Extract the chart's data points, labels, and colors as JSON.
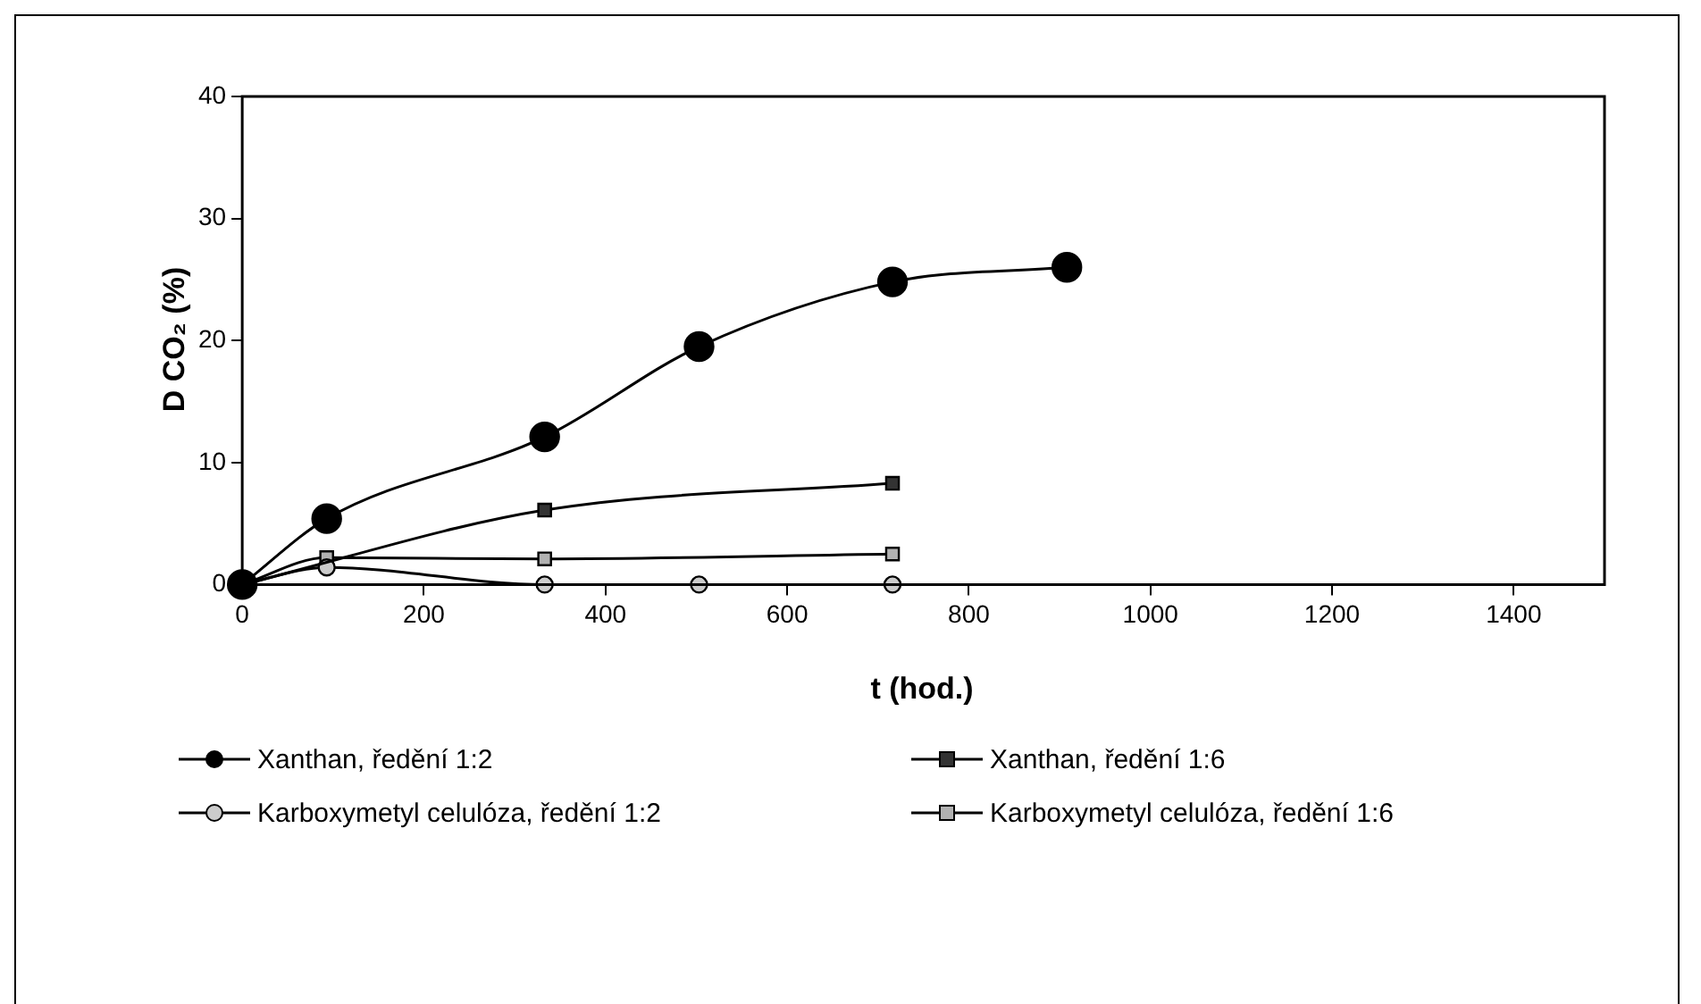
{
  "chart_data": {
    "type": "line",
    "xlabel": "t (hod.)",
    "ylabel": "D CO₂ (%)",
    "xlim": [
      0,
      1500
    ],
    "xticks": [
      0,
      200,
      400,
      600,
      800,
      1000,
      1200,
      1400
    ],
    "ylim": [
      0,
      40
    ],
    "yticks": [
      0,
      10,
      20,
      30,
      40
    ],
    "grid": false,
    "legend": "bottom",
    "series": [
      {
        "name": "Xanthan, ředění 1:2",
        "color": "#000000",
        "marker": "circle",
        "x": [
          0,
          93,
          333,
          503,
          716,
          908
        ],
        "values": [
          0,
          5.4,
          12.1,
          19.5,
          24.8,
          26.0
        ]
      },
      {
        "name": "Xanthan, ředění 1:6",
        "color": "#333333",
        "marker": "square",
        "x": [
          0,
          93,
          333,
          716
        ],
        "values": [
          0,
          null,
          6.1,
          8.3
        ]
      },
      {
        "name": "Karboxymetyl celulóza, ředění 1:2",
        "color": "#cccccc",
        "marker": "circle",
        "x": [
          0,
          93,
          333,
          503,
          716
        ],
        "values": [
          0,
          1.4,
          0,
          0,
          0
        ]
      },
      {
        "name": "Karboxymetyl celulóza, ředění 1:6",
        "color": "#b2b2b2",
        "marker": "square",
        "x": [
          0,
          93,
          333,
          716
        ],
        "values": [
          0,
          2.2,
          2.1,
          2.5
        ]
      }
    ]
  }
}
